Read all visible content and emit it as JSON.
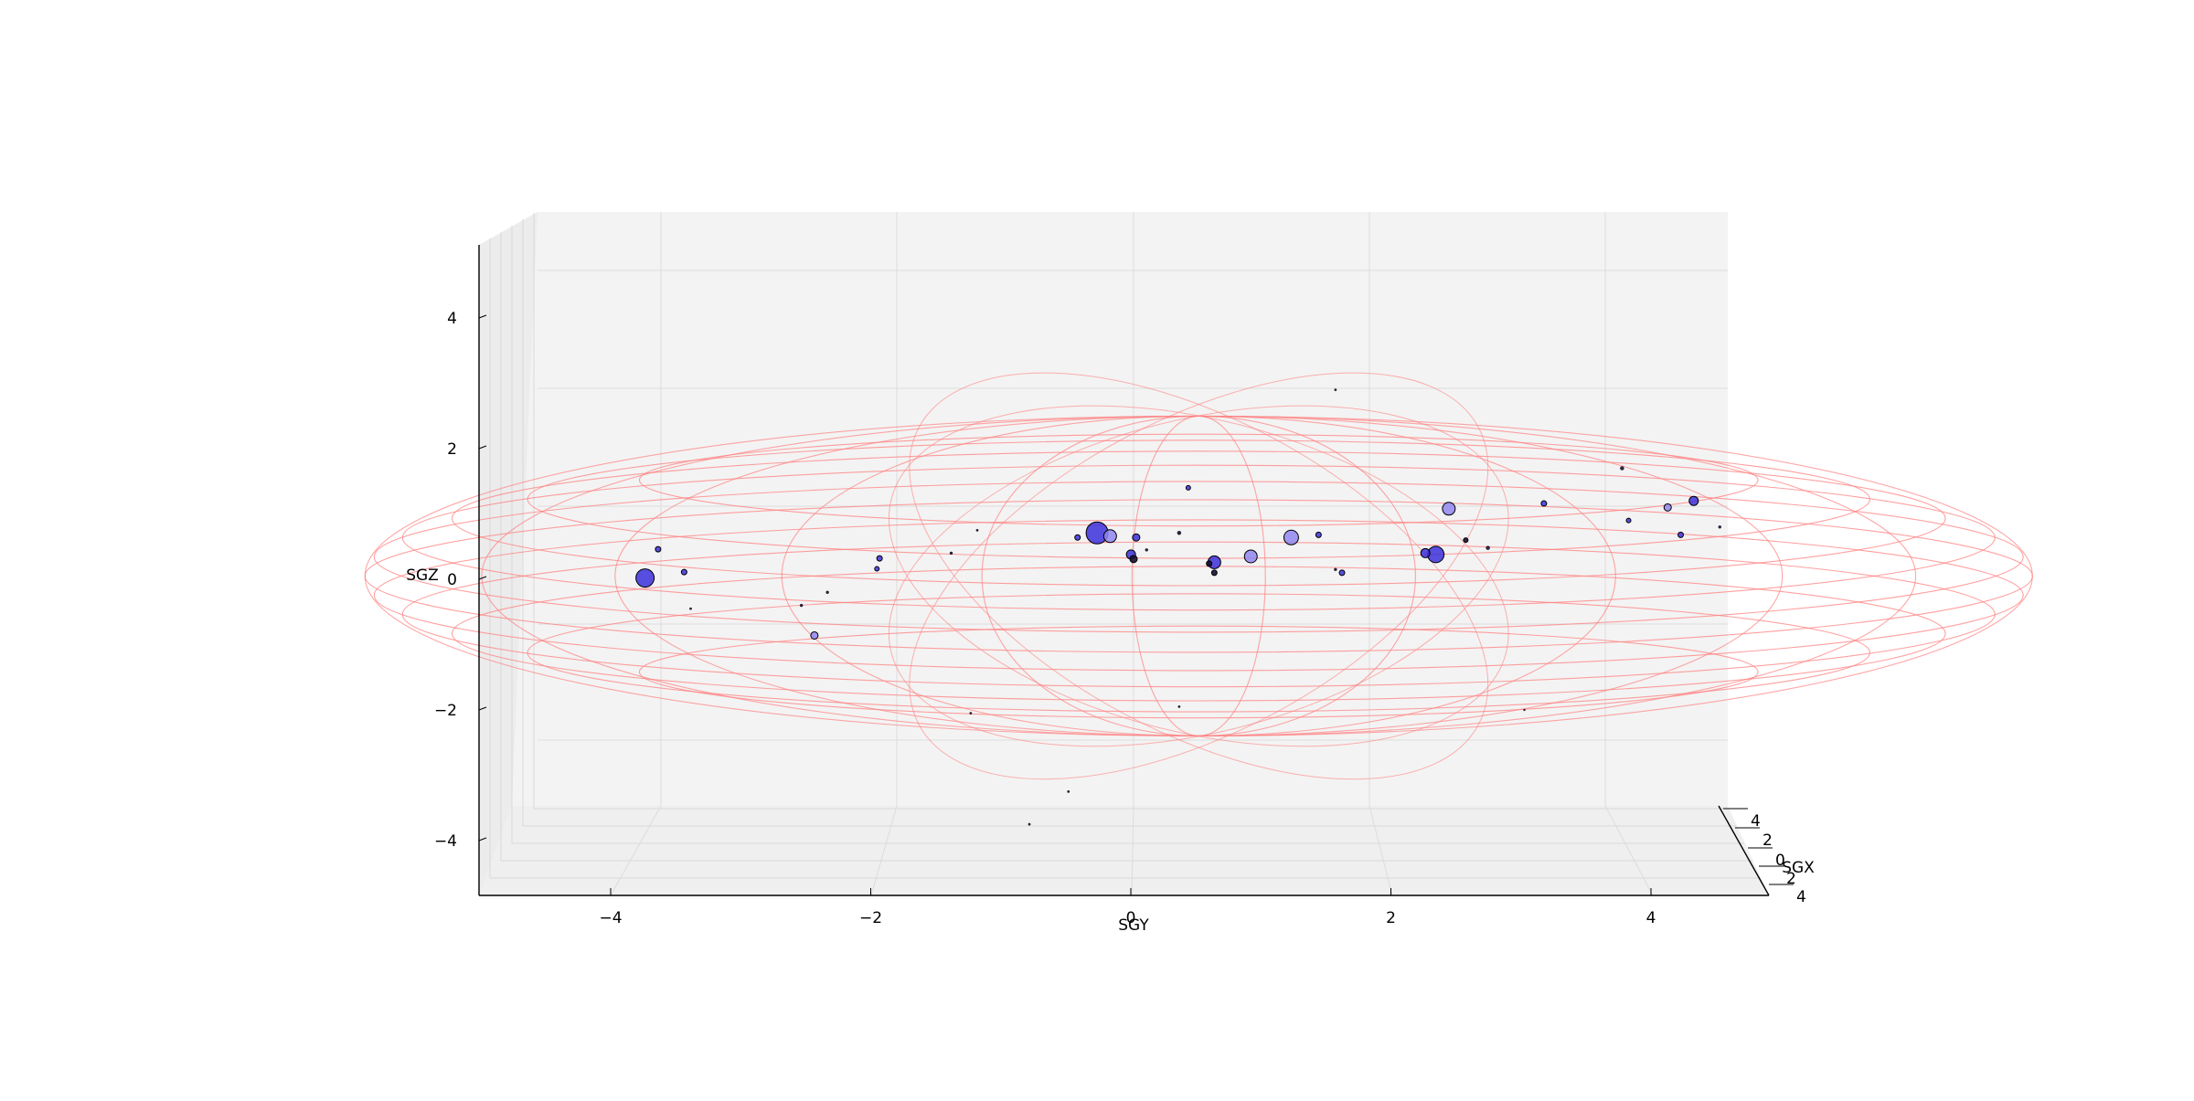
{
  "chart_data": {
    "type": "scatter",
    "projection": "3d",
    "xlabel": "SGY",
    "ylabel": "SGX",
    "zlabel": "SGZ",
    "axes": {
      "sgy": {
        "ticks": [
          -4,
          -2,
          0,
          2,
          4
        ],
        "tick_labels": [
          "−4",
          "−2",
          "0",
          "2",
          "4"
        ],
        "lim": [
          -5,
          5
        ]
      },
      "sgx": {
        "ticks": [
          4,
          2,
          0,
          2,
          4
        ],
        "tick_labels": [
          "4",
          "2",
          "0",
          "2",
          "4"
        ],
        "lim": [
          -5,
          5
        ]
      },
      "sgz": {
        "ticks": [
          -4,
          -2,
          0,
          2,
          4
        ],
        "tick_labels": [
          "−4",
          "−2",
          "0",
          "2",
          "4"
        ],
        "lim": [
          -5,
          5
        ]
      }
    },
    "grid": true,
    "colors": {
      "wireframe": "#ff8080",
      "point_fill": "#3b2fd9",
      "point_fill_light": "#8f86ee",
      "point_edge": "#000000",
      "pane": "#f3f3f3",
      "gridline": "#dcdcdc"
    },
    "wireframe": {
      "shape": "ellipsoid",
      "semi_axes": {
        "sgy": 6.4,
        "sgz": 0.85
      },
      "center": {
        "sgy": 0.5,
        "sgz": 0.05
      }
    },
    "points": [
      {
        "y": -3.75,
        "z": 0.02,
        "s": 10,
        "c": "dark"
      },
      {
        "y": -3.45,
        "z": 0.11,
        "s": 3,
        "c": "dark"
      },
      {
        "y": -3.65,
        "z": 0.46,
        "s": 3,
        "c": "dark"
      },
      {
        "y": -2.45,
        "z": -0.86,
        "s": 4,
        "c": "light"
      },
      {
        "y": -1.95,
        "z": 0.32,
        "s": 3,
        "c": "dark"
      },
      {
        "y": -1.97,
        "z": 0.16,
        "s": 2.5,
        "c": "dark"
      },
      {
        "y": -2.35,
        "z": -0.2,
        "s": 1.5,
        "c": "black"
      },
      {
        "y": -2.55,
        "z": -0.4,
        "s": 1.5,
        "c": "black"
      },
      {
        "y": -3.4,
        "z": -0.45,
        "s": 1.2,
        "c": "black"
      },
      {
        "y": -1.4,
        "z": 0.4,
        "s": 1.5,
        "c": "black"
      },
      {
        "y": -1.2,
        "z": 0.75,
        "s": 1.2,
        "c": "black"
      },
      {
        "y": -0.28,
        "z": 0.71,
        "s": 12,
        "c": "dark"
      },
      {
        "y": -0.18,
        "z": 0.66,
        "s": 7,
        "c": "light"
      },
      {
        "y": -0.43,
        "z": 0.64,
        "s": 3,
        "c": "dark"
      },
      {
        "y": 0.02,
        "z": 0.64,
        "s": 4,
        "c": "dark"
      },
      {
        "y": -0.02,
        "z": 0.38,
        "s": 5,
        "c": "dark"
      },
      {
        "y": 0.0,
        "z": 0.31,
        "s": 4,
        "c": "black"
      },
      {
        "y": 0.62,
        "z": 0.26,
        "s": 7,
        "c": "dark"
      },
      {
        "y": 0.58,
        "z": 0.24,
        "s": 3,
        "c": "black"
      },
      {
        "y": 0.62,
        "z": 0.1,
        "s": 3,
        "c": "black"
      },
      {
        "y": 0.35,
        "z": 0.71,
        "s": 2,
        "c": "black"
      },
      {
        "y": 0.42,
        "z": 1.4,
        "s": 2.5,
        "c": "dark"
      },
      {
        "y": 0.9,
        "z": 0.35,
        "s": 7,
        "c": "light"
      },
      {
        "y": 1.21,
        "z": 0.64,
        "s": 8,
        "c": "light"
      },
      {
        "y": 1.42,
        "z": 0.68,
        "s": 3,
        "c": "dark"
      },
      {
        "y": 1.6,
        "z": 0.1,
        "s": 3,
        "c": "dark"
      },
      {
        "y": 1.55,
        "z": 0.15,
        "s": 1.5,
        "c": "black"
      },
      {
        "y": 2.42,
        "z": 1.08,
        "s": 7,
        "c": "light"
      },
      {
        "y": 2.32,
        "z": 0.38,
        "s": 9,
        "c": "dark"
      },
      {
        "y": 2.24,
        "z": 0.4,
        "s": 5,
        "c": "dark"
      },
      {
        "y": 2.55,
        "z": 0.6,
        "s": 2.5,
        "c": "black"
      },
      {
        "y": 2.72,
        "z": 0.48,
        "s": 2,
        "c": "black"
      },
      {
        "y": 3.15,
        "z": 1.16,
        "s": 3,
        "c": "dark"
      },
      {
        "y": 3.75,
        "z": 1.7,
        "s": 2,
        "c": "black"
      },
      {
        "y": 4.1,
        "z": 1.1,
        "s": 4,
        "c": "light"
      },
      {
        "y": 4.3,
        "z": 1.2,
        "s": 5,
        "c": "dark"
      },
      {
        "y": 4.2,
        "z": 0.68,
        "s": 3,
        "c": "dark"
      },
      {
        "y": 3.8,
        "z": 0.9,
        "s": 2.5,
        "c": "dark"
      },
      {
        "y": 4.5,
        "z": 0.8,
        "s": 1.5,
        "c": "black"
      },
      {
        "y": 1.55,
        "z": 2.9,
        "s": 1.2,
        "c": "black"
      },
      {
        "y": 0.1,
        "z": 0.45,
        "s": 1.5,
        "c": "black"
      },
      {
        "y": 0.35,
        "z": -1.95,
        "s": 1.2,
        "c": "black"
      },
      {
        "y": -0.5,
        "z": -3.25,
        "s": 1.2,
        "c": "black"
      },
      {
        "y": -1.25,
        "z": -2.05,
        "s": 1.2,
        "c": "black"
      },
      {
        "y": -0.8,
        "z": -3.75,
        "s": 1.2,
        "c": "black"
      },
      {
        "y": 3.0,
        "z": -2.0,
        "s": 1.0,
        "c": "black"
      }
    ]
  }
}
